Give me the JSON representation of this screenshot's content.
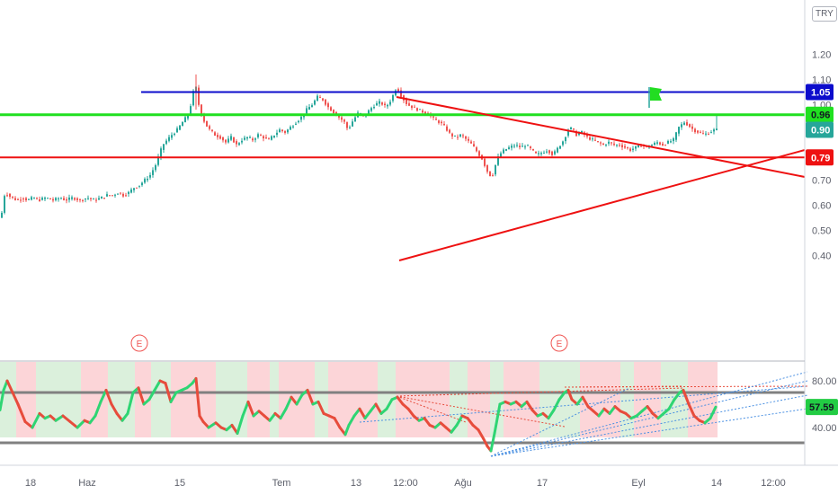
{
  "currency": "TRY",
  "earnings_marker": "E",
  "colors": {
    "up": "#26a69a",
    "down": "#ef5350",
    "hline_blue": "#0c0ccc",
    "hline_green": "#20e020",
    "hline_red": "#ee1111",
    "trend_red": "#ee1111",
    "price_tag_green": "#26a69a",
    "band_green": "#dbf0dc",
    "band_red": "#fcd5d8",
    "osc_up": "#2ed573",
    "osc_down": "#e74c3c",
    "rsi_tag": "#22cc44"
  },
  "price_axis": {
    "ticks": [
      "1.20",
      "1.10",
      "1.00",
      "0.90",
      "0.80",
      "0.70",
      "0.60",
      "0.50",
      "0.40"
    ],
    "tick_values": [
      1.2,
      1.1,
      1.0,
      0.9,
      0.8,
      0.7,
      0.6,
      0.5,
      0.4
    ]
  },
  "level_tags": [
    {
      "label": "1.05",
      "value": 1.05,
      "bg": "#0c0ccc",
      "fg": "#ffffff"
    },
    {
      "label": "0.96",
      "value": 0.96,
      "bg": "#20e020",
      "fg": "#131722"
    },
    {
      "label": "0.90",
      "value": 0.9,
      "bg": "#26a69a",
      "fg": "#ffffff"
    },
    {
      "label": "0.79",
      "value": 0.79,
      "bg": "#ee1111",
      "fg": "#ffffff"
    }
  ],
  "osc_axis": {
    "ticks": [
      "80.00",
      "40.00"
    ],
    "tick_values": [
      80,
      40
    ],
    "current": {
      "label": "57.59",
      "value": 57.59
    }
  },
  "time_axis": {
    "labels": [
      "18",
      "Haz",
      "15",
      "Tem",
      "13",
      "12:00",
      "Ağu",
      "17",
      "Eyl",
      "14",
      "12:00"
    ]
  },
  "chart_data": [
    {
      "type": "candlestick",
      "title": "",
      "y_unit": "TRY",
      "horizontal_levels": [
        1.05,
        0.96,
        0.79
      ],
      "last_price": 0.9,
      "ylim": [
        0.35,
        1.25
      ],
      "price_path": [
        [
          0,
          0.55
        ],
        [
          1,
          0.57
        ],
        [
          2,
          0.6
        ],
        [
          3,
          0.62
        ],
        [
          4,
          0.64
        ],
        [
          5,
          0.66
        ],
        [
          6,
          0.65
        ],
        [
          8,
          0.64
        ],
        [
          12,
          0.63
        ],
        [
          18,
          0.62
        ],
        [
          24,
          0.63
        ],
        [
          30,
          0.62
        ],
        [
          36,
          0.63
        ],
        [
          42,
          0.62
        ],
        [
          50,
          0.63
        ],
        [
          58,
          0.62
        ],
        [
          66,
          0.63
        ],
        [
          72,
          0.62
        ],
        [
          80,
          0.63
        ],
        [
          88,
          0.62
        ],
        [
          96,
          0.63
        ],
        [
          104,
          0.62
        ],
        [
          112,
          0.63
        ],
        [
          118,
          0.64
        ],
        [
          124,
          0.64
        ],
        [
          130,
          0.65
        ],
        [
          136,
          0.64
        ],
        [
          142,
          0.65
        ],
        [
          148,
          0.67
        ],
        [
          154,
          0.68
        ],
        [
          160,
          0.7
        ],
        [
          166,
          0.72
        ],
        [
          172,
          0.76
        ],
        [
          176,
          0.8
        ],
        [
          180,
          0.84
        ],
        [
          185,
          0.86
        ],
        [
          190,
          0.88
        ],
        [
          196,
          0.9
        ],
        [
          202,
          0.93
        ],
        [
          208,
          0.96
        ],
        [
          212,
          1.01
        ],
        [
          216,
          1.09
        ],
        [
          220,
          1.0
        ],
        [
          224,
          0.95
        ],
        [
          228,
          0.92
        ],
        [
          232,
          0.9
        ],
        [
          238,
          0.88
        ],
        [
          244,
          0.87
        ],
        [
          250,
          0.85
        ],
        [
          256,
          0.87
        ],
        [
          262,
          0.84
        ],
        [
          268,
          0.86
        ],
        [
          274,
          0.87
        ],
        [
          280,
          0.86
        ],
        [
          286,
          0.88
        ],
        [
          292,
          0.87
        ],
        [
          298,
          0.86
        ],
        [
          304,
          0.88
        ],
        [
          310,
          0.9
        ],
        [
          316,
          0.89
        ],
        [
          322,
          0.91
        ],
        [
          328,
          0.93
        ],
        [
          334,
          0.95
        ],
        [
          340,
          0.98
        ],
        [
          346,
          1.0
        ],
        [
          352,
          1.03
        ],
        [
          358,
          1.02
        ],
        [
          364,
          0.99
        ],
        [
          370,
          0.97
        ],
        [
          376,
          0.95
        ],
        [
          382,
          0.93
        ],
        [
          386,
          0.9
        ],
        [
          392,
          0.94
        ],
        [
          398,
          0.97
        ],
        [
          404,
          0.95
        ],
        [
          410,
          0.98
        ],
        [
          416,
          1.0
        ],
        [
          422,
          1.01
        ],
        [
          428,
          0.99
        ],
        [
          434,
          1.02
        ],
        [
          440,
          1.07
        ],
        [
          446,
          1.03
        ],
        [
          452,
          1.0
        ],
        [
          458,
          0.99
        ],
        [
          464,
          0.98
        ],
        [
          470,
          0.97
        ],
        [
          476,
          0.96
        ],
        [
          482,
          0.94
        ],
        [
          488,
          0.93
        ],
        [
          494,
          0.91
        ],
        [
          500,
          0.88
        ],
        [
          506,
          0.87
        ],
        [
          512,
          0.88
        ],
        [
          518,
          0.86
        ],
        [
          524,
          0.84
        ],
        [
          530,
          0.81
        ],
        [
          536,
          0.78
        ],
        [
          540,
          0.74
        ],
        [
          546,
          0.71
        ],
        [
          550,
          0.76
        ],
        [
          554,
          0.8
        ],
        [
          560,
          0.82
        ],
        [
          566,
          0.83
        ],
        [
          572,
          0.84
        ],
        [
          578,
          0.83
        ],
        [
          584,
          0.84
        ],
        [
          590,
          0.82
        ],
        [
          596,
          0.8
        ],
        [
          602,
          0.81
        ],
        [
          608,
          0.82
        ],
        [
          614,
          0.8
        ],
        [
          620,
          0.83
        ],
        [
          626,
          0.86
        ],
        [
          632,
          0.91
        ],
        [
          636,
          0.9
        ],
        [
          640,
          0.88
        ],
        [
          646,
          0.89
        ],
        [
          652,
          0.87
        ],
        [
          658,
          0.86
        ],
        [
          664,
          0.85
        ],
        [
          670,
          0.84
        ],
        [
          676,
          0.85
        ],
        [
          682,
          0.84
        ],
        [
          688,
          0.84
        ],
        [
          694,
          0.83
        ],
        [
          700,
          0.82
        ],
        [
          706,
          0.83
        ],
        [
          712,
          0.84
        ],
        [
          718,
          0.83
        ],
        [
          724,
          0.84
        ],
        [
          730,
          0.85
        ],
        [
          736,
          0.84
        ],
        [
          742,
          0.85
        ],
        [
          748,
          0.86
        ],
        [
          754,
          0.91
        ],
        [
          760,
          0.93
        ],
        [
          764,
          0.92
        ],
        [
          770,
          0.9
        ],
        [
          776,
          0.89
        ],
        [
          782,
          0.88
        ],
        [
          788,
          0.89
        ],
        [
          794,
          0.9
        ]
      ]
    },
    {
      "type": "line",
      "title": "",
      "ylim": [
        0,
        100
      ],
      "levels": [
        70,
        30
      ],
      "last_value": 57.59,
      "values_path": [
        [
          0,
          55
        ],
        [
          4,
          72
        ],
        [
          8,
          80
        ],
        [
          14,
          70
        ],
        [
          20,
          60
        ],
        [
          28,
          45
        ],
        [
          36,
          40
        ],
        [
          44,
          52
        ],
        [
          50,
          48
        ],
        [
          56,
          50
        ],
        [
          62,
          46
        ],
        [
          70,
          50
        ],
        [
          78,
          45
        ],
        [
          86,
          40
        ],
        [
          94,
          46
        ],
        [
          100,
          44
        ],
        [
          106,
          50
        ],
        [
          112,
          62
        ],
        [
          118,
          72
        ],
        [
          124,
          60
        ],
        [
          130,
          52
        ],
        [
          136,
          46
        ],
        [
          142,
          52
        ],
        [
          148,
          70
        ],
        [
          154,
          74
        ],
        [
          160,
          60
        ],
        [
          166,
          64
        ],
        [
          172,
          72
        ],
        [
          178,
          80
        ],
        [
          184,
          78
        ],
        [
          190,
          62
        ],
        [
          196,
          70
        ],
        [
          202,
          72
        ],
        [
          208,
          74
        ],
        [
          214,
          78
        ],
        [
          218,
          82
        ],
        [
          222,
          50
        ],
        [
          226,
          45
        ],
        [
          232,
          40
        ],
        [
          240,
          44
        ],
        [
          246,
          40
        ],
        [
          252,
          38
        ],
        [
          258,
          42
        ],
        [
          264,
          35
        ],
        [
          270,
          50
        ],
        [
          276,
          62
        ],
        [
          282,
          50
        ],
        [
          288,
          54
        ],
        [
          294,
          50
        ],
        [
          300,
          46
        ],
        [
          306,
          52
        ],
        [
          312,
          48
        ],
        [
          318,
          56
        ],
        [
          324,
          66
        ],
        [
          330,
          60
        ],
        [
          336,
          68
        ],
        [
          342,
          72
        ],
        [
          348,
          60
        ],
        [
          354,
          62
        ],
        [
          360,
          52
        ],
        [
          366,
          50
        ],
        [
          372,
          48
        ],
        [
          378,
          40
        ],
        [
          384,
          34
        ],
        [
          388,
          42
        ],
        [
          394,
          50
        ],
        [
          400,
          56
        ],
        [
          406,
          48
        ],
        [
          412,
          54
        ],
        [
          418,
          60
        ],
        [
          424,
          52
        ],
        [
          430,
          56
        ],
        [
          436,
          64
        ],
        [
          442,
          66
        ],
        [
          448,
          60
        ],
        [
          454,
          56
        ],
        [
          460,
          50
        ],
        [
          466,
          46
        ],
        [
          472,
          48
        ],
        [
          478,
          42
        ],
        [
          484,
          40
        ],
        [
          490,
          44
        ],
        [
          496,
          40
        ],
        [
          502,
          36
        ],
        [
          508,
          42
        ],
        [
          514,
          50
        ],
        [
          520,
          48
        ],
        [
          526,
          42
        ],
        [
          532,
          38
        ],
        [
          538,
          30
        ],
        [
          542,
          24
        ],
        [
          546,
          20
        ],
        [
          550,
          35
        ],
        [
          556,
          60
        ],
        [
          562,
          62
        ],
        [
          568,
          60
        ],
        [
          574,
          62
        ],
        [
          580,
          58
        ],
        [
          586,
          62
        ],
        [
          592,
          55
        ],
        [
          598,
          50
        ],
        [
          604,
          52
        ],
        [
          610,
          48
        ],
        [
          616,
          55
        ],
        [
          622,
          64
        ],
        [
          628,
          70
        ],
        [
          632,
          72
        ],
        [
          636,
          64
        ],
        [
          642,
          60
        ],
        [
          648,
          66
        ],
        [
          654,
          58
        ],
        [
          660,
          54
        ],
        [
          666,
          50
        ],
        [
          672,
          56
        ],
        [
          678,
          52
        ],
        [
          684,
          58
        ],
        [
          690,
          54
        ],
        [
          696,
          52
        ],
        [
          702,
          48
        ],
        [
          708,
          50
        ],
        [
          714,
          54
        ],
        [
          720,
          58
        ],
        [
          726,
          52
        ],
        [
          732,
          48
        ],
        [
          738,
          52
        ],
        [
          744,
          56
        ],
        [
          750,
          64
        ],
        [
          756,
          70
        ],
        [
          760,
          72
        ],
        [
          766,
          60
        ],
        [
          772,
          50
        ],
        [
          778,
          46
        ],
        [
          784,
          44
        ],
        [
          790,
          48
        ],
        [
          796,
          57.59
        ]
      ]
    }
  ]
}
